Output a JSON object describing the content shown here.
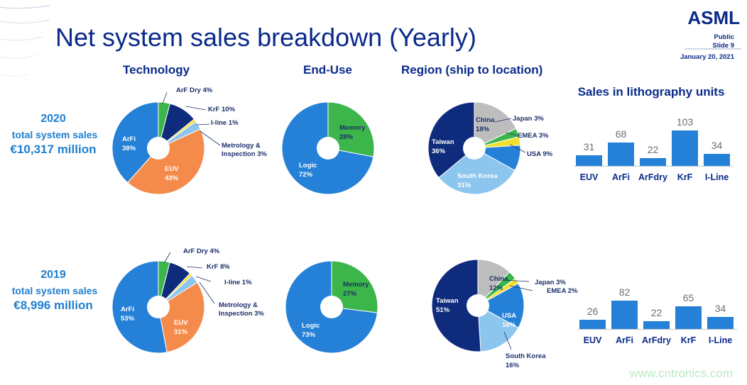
{
  "slide": {
    "title": "Net system sales breakdown (Yearly)",
    "logo": "ASML",
    "classification": "Public",
    "slide_number": "Slide 9",
    "date": "January 20, 2021",
    "watermark": "www.cntronics.com"
  },
  "headers": {
    "technology": "Technology",
    "end_use": "End-Use",
    "region": "Region (ship to location)",
    "units": "Sales in lithography units"
  },
  "colors": {
    "dark_blue": "#0f2b7c",
    "mid_blue": "#2581d8",
    "light_blue": "#8cc5ee",
    "orange": "#f58b4b",
    "green": "#3cb54a",
    "yellow": "#f3df2a",
    "grey": "#bdbdbd",
    "text_blue": "#0a2a8a",
    "year_blue": "#1e7fd0"
  },
  "years": [
    {
      "year": "2020",
      "line": "total system sales",
      "value": "€10,317 million"
    },
    {
      "year": "2019",
      "line": "total system sales",
      "value": "€8,996 million"
    }
  ],
  "chart_data": [
    {
      "type": "pie",
      "title": "Technology",
      "period": "2020",
      "categories": [
        "ArF Dry",
        "KrF",
        "I-line",
        "Metrology & Inspection",
        "EUV",
        "ArFi"
      ],
      "values": [
        4,
        10,
        1,
        3,
        43,
        38
      ],
      "labels": [
        "ArF Dry 4%",
        "KrF 10%",
        "I-line 1%",
        "Metrology &",
        "Inspection 3%",
        "EUV",
        "43%",
        "ArFi",
        "38%"
      ]
    },
    {
      "type": "pie",
      "title": "End-Use",
      "period": "2020",
      "categories": [
        "Memory",
        "Logic"
      ],
      "values": [
        28,
        72
      ],
      "labels": [
        "Memory",
        "28%",
        "Logic",
        "72%"
      ]
    },
    {
      "type": "pie",
      "title": "Region (ship to location)",
      "period": "2020",
      "categories": [
        "China",
        "Japan",
        "EMEA",
        "USA",
        "South Korea",
        "Taiwan"
      ],
      "values": [
        18,
        3,
        3,
        9,
        31,
        36
      ],
      "labels": [
        "China",
        "18%",
        "Japan 3%",
        "EMEA 3%",
        "USA 9%",
        "South Korea",
        "31%",
        "Taiwan",
        "36%"
      ]
    },
    {
      "type": "bar",
      "title": "Sales in lithography units",
      "period": "2020",
      "categories": [
        "EUV",
        "ArFi",
        "ArFdry",
        "KrF",
        "I-Line"
      ],
      "values": [
        31,
        68,
        22,
        103,
        34
      ]
    },
    {
      "type": "pie",
      "title": "Technology",
      "period": "2019",
      "categories": [
        "ArF Dry",
        "KrF",
        "I-line",
        "Metrology & Inspection",
        "EUV",
        "ArFi"
      ],
      "values": [
        4,
        8,
        1,
        3,
        31,
        53
      ],
      "labels": [
        "ArF Dry 4%",
        "KrF 8%",
        "I-line 1%",
        "Metrology &",
        "Inspection 3%",
        "EUV",
        "31%",
        "ArFi",
        "53%"
      ]
    },
    {
      "type": "pie",
      "title": "End-Use",
      "period": "2019",
      "categories": [
        "Memory",
        "Logic"
      ],
      "values": [
        27,
        73
      ],
      "labels": [
        "Memory",
        "27%",
        "Logic",
        "73%"
      ]
    },
    {
      "type": "pie",
      "title": "Region (ship to location)",
      "period": "2019",
      "categories": [
        "China",
        "Japan",
        "EMEA",
        "USA",
        "South Korea",
        "Taiwan"
      ],
      "values": [
        12,
        3,
        2,
        16,
        16,
        51
      ],
      "labels": [
        "China",
        "12%",
        "Japan 3%",
        "EMEA 2%",
        "USA",
        "16%",
        "South Korea",
        "16%",
        "Taiwan",
        "51%"
      ]
    },
    {
      "type": "bar",
      "title": "Sales in lithography units",
      "period": "2019",
      "categories": [
        "EUV",
        "ArFi",
        "ArFdry",
        "KrF",
        "I-Line"
      ],
      "values": [
        26,
        82,
        22,
        65,
        34
      ]
    }
  ]
}
